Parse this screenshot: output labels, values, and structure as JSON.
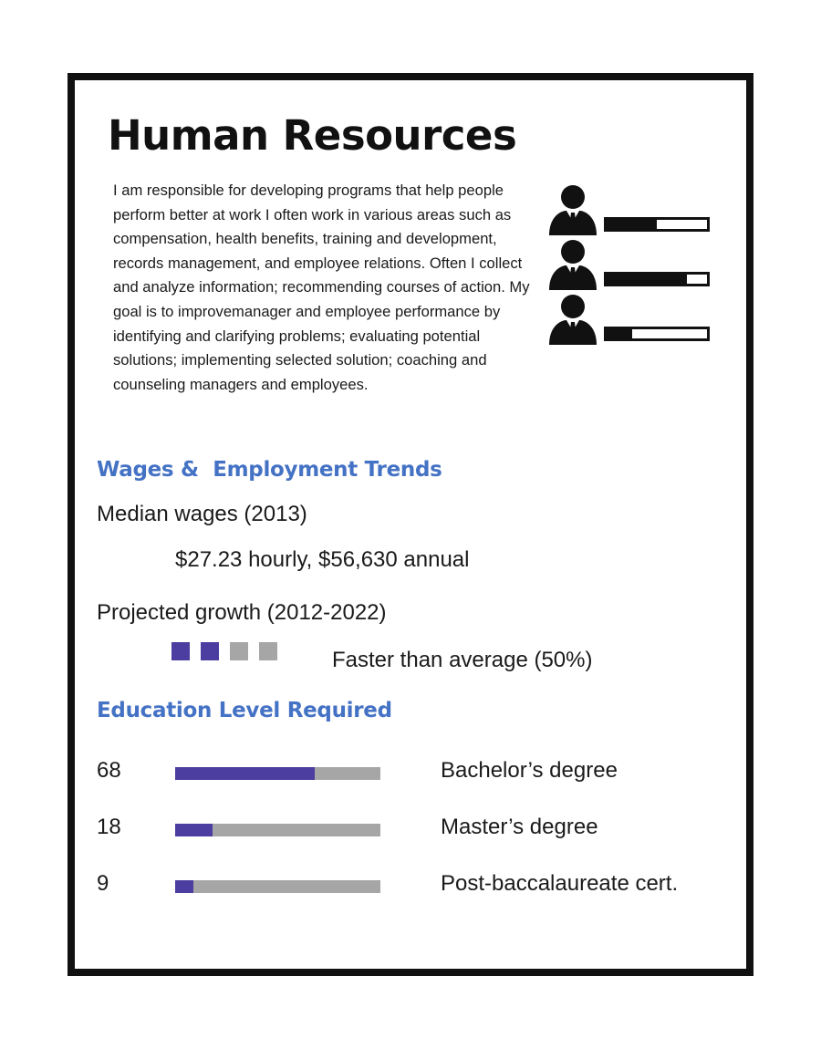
{
  "header": {
    "title": "Human Resources"
  },
  "description": "I am responsible for developing programs that help people perform better at work I often work in various areas such as compensation, health benefits, training and development, records management, and employee relations.  Often I collect and analyze information; recommending courses of action.  My goal is to improvemanager and employee performance by identifying and clarifying problems; evaluating potential solutions; implementing selected solution; coaching and counseling managers and employees.",
  "people_meters": [
    {
      "icon": "person-tie-icon",
      "level": 0.5
    },
    {
      "icon": "person-tie-icon",
      "level": 0.8
    },
    {
      "icon": "person-tie-icon",
      "level": 0.25
    }
  ],
  "wages": {
    "heading": "Wages &  Employment Trends",
    "median_label": "Median wages (2013)",
    "median_value": "$27.23 hourly, $56,630 annual",
    "growth_label": "Projected growth (2012-2022)",
    "growth_rating": {
      "filled": 2,
      "total": 4
    },
    "growth_value": "Faster than average (50%)"
  },
  "education": {
    "heading": "Education Level Required",
    "rows": [
      {
        "value": "68",
        "percent": 68,
        "label": "Bachelor’s degree"
      },
      {
        "value": "18",
        "percent": 18,
        "label": "Master’s degree"
      },
      {
        "value": "9",
        "percent": 9,
        "label": "Post-baccalaureate cert."
      }
    ]
  },
  "colors": {
    "accent": "#4472c4",
    "filled": "#4b3ea0",
    "empty": "#a6a6a6",
    "ink": "#111111"
  }
}
